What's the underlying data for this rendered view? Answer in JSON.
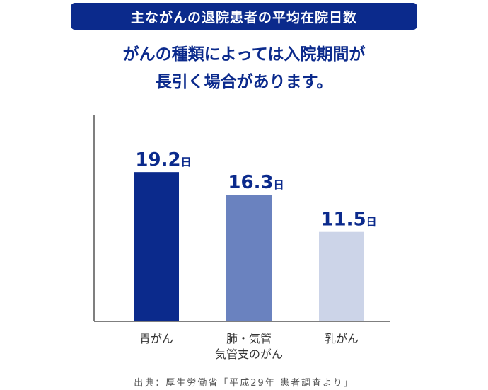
{
  "banner": {
    "title": "主ながんの退院患者の平均在院日数"
  },
  "headline": {
    "line1": "がんの種類によっては入院期間が",
    "line2": "長引く場合があります。"
  },
  "source": "出典：厚生労働省「平成29年 患者調査より」",
  "chart_data": {
    "type": "bar",
    "title": "主ながんの退院患者の平均在院日数",
    "categories": [
      [
        "胃がん"
      ],
      [
        "肺・気管",
        "気管支のがん"
      ],
      [
        "乳がん"
      ]
    ],
    "values": [
      19.2,
      16.3,
      11.5
    ],
    "value_unit": "日",
    "value_labels": [
      "19.2",
      "16.3",
      "11.5"
    ],
    "colors": [
      "#0b2a8c",
      "#6a82bf",
      "#ccd4e8"
    ],
    "ylim": [
      0,
      26.5
    ],
    "grid": false,
    "legend": "none"
  }
}
